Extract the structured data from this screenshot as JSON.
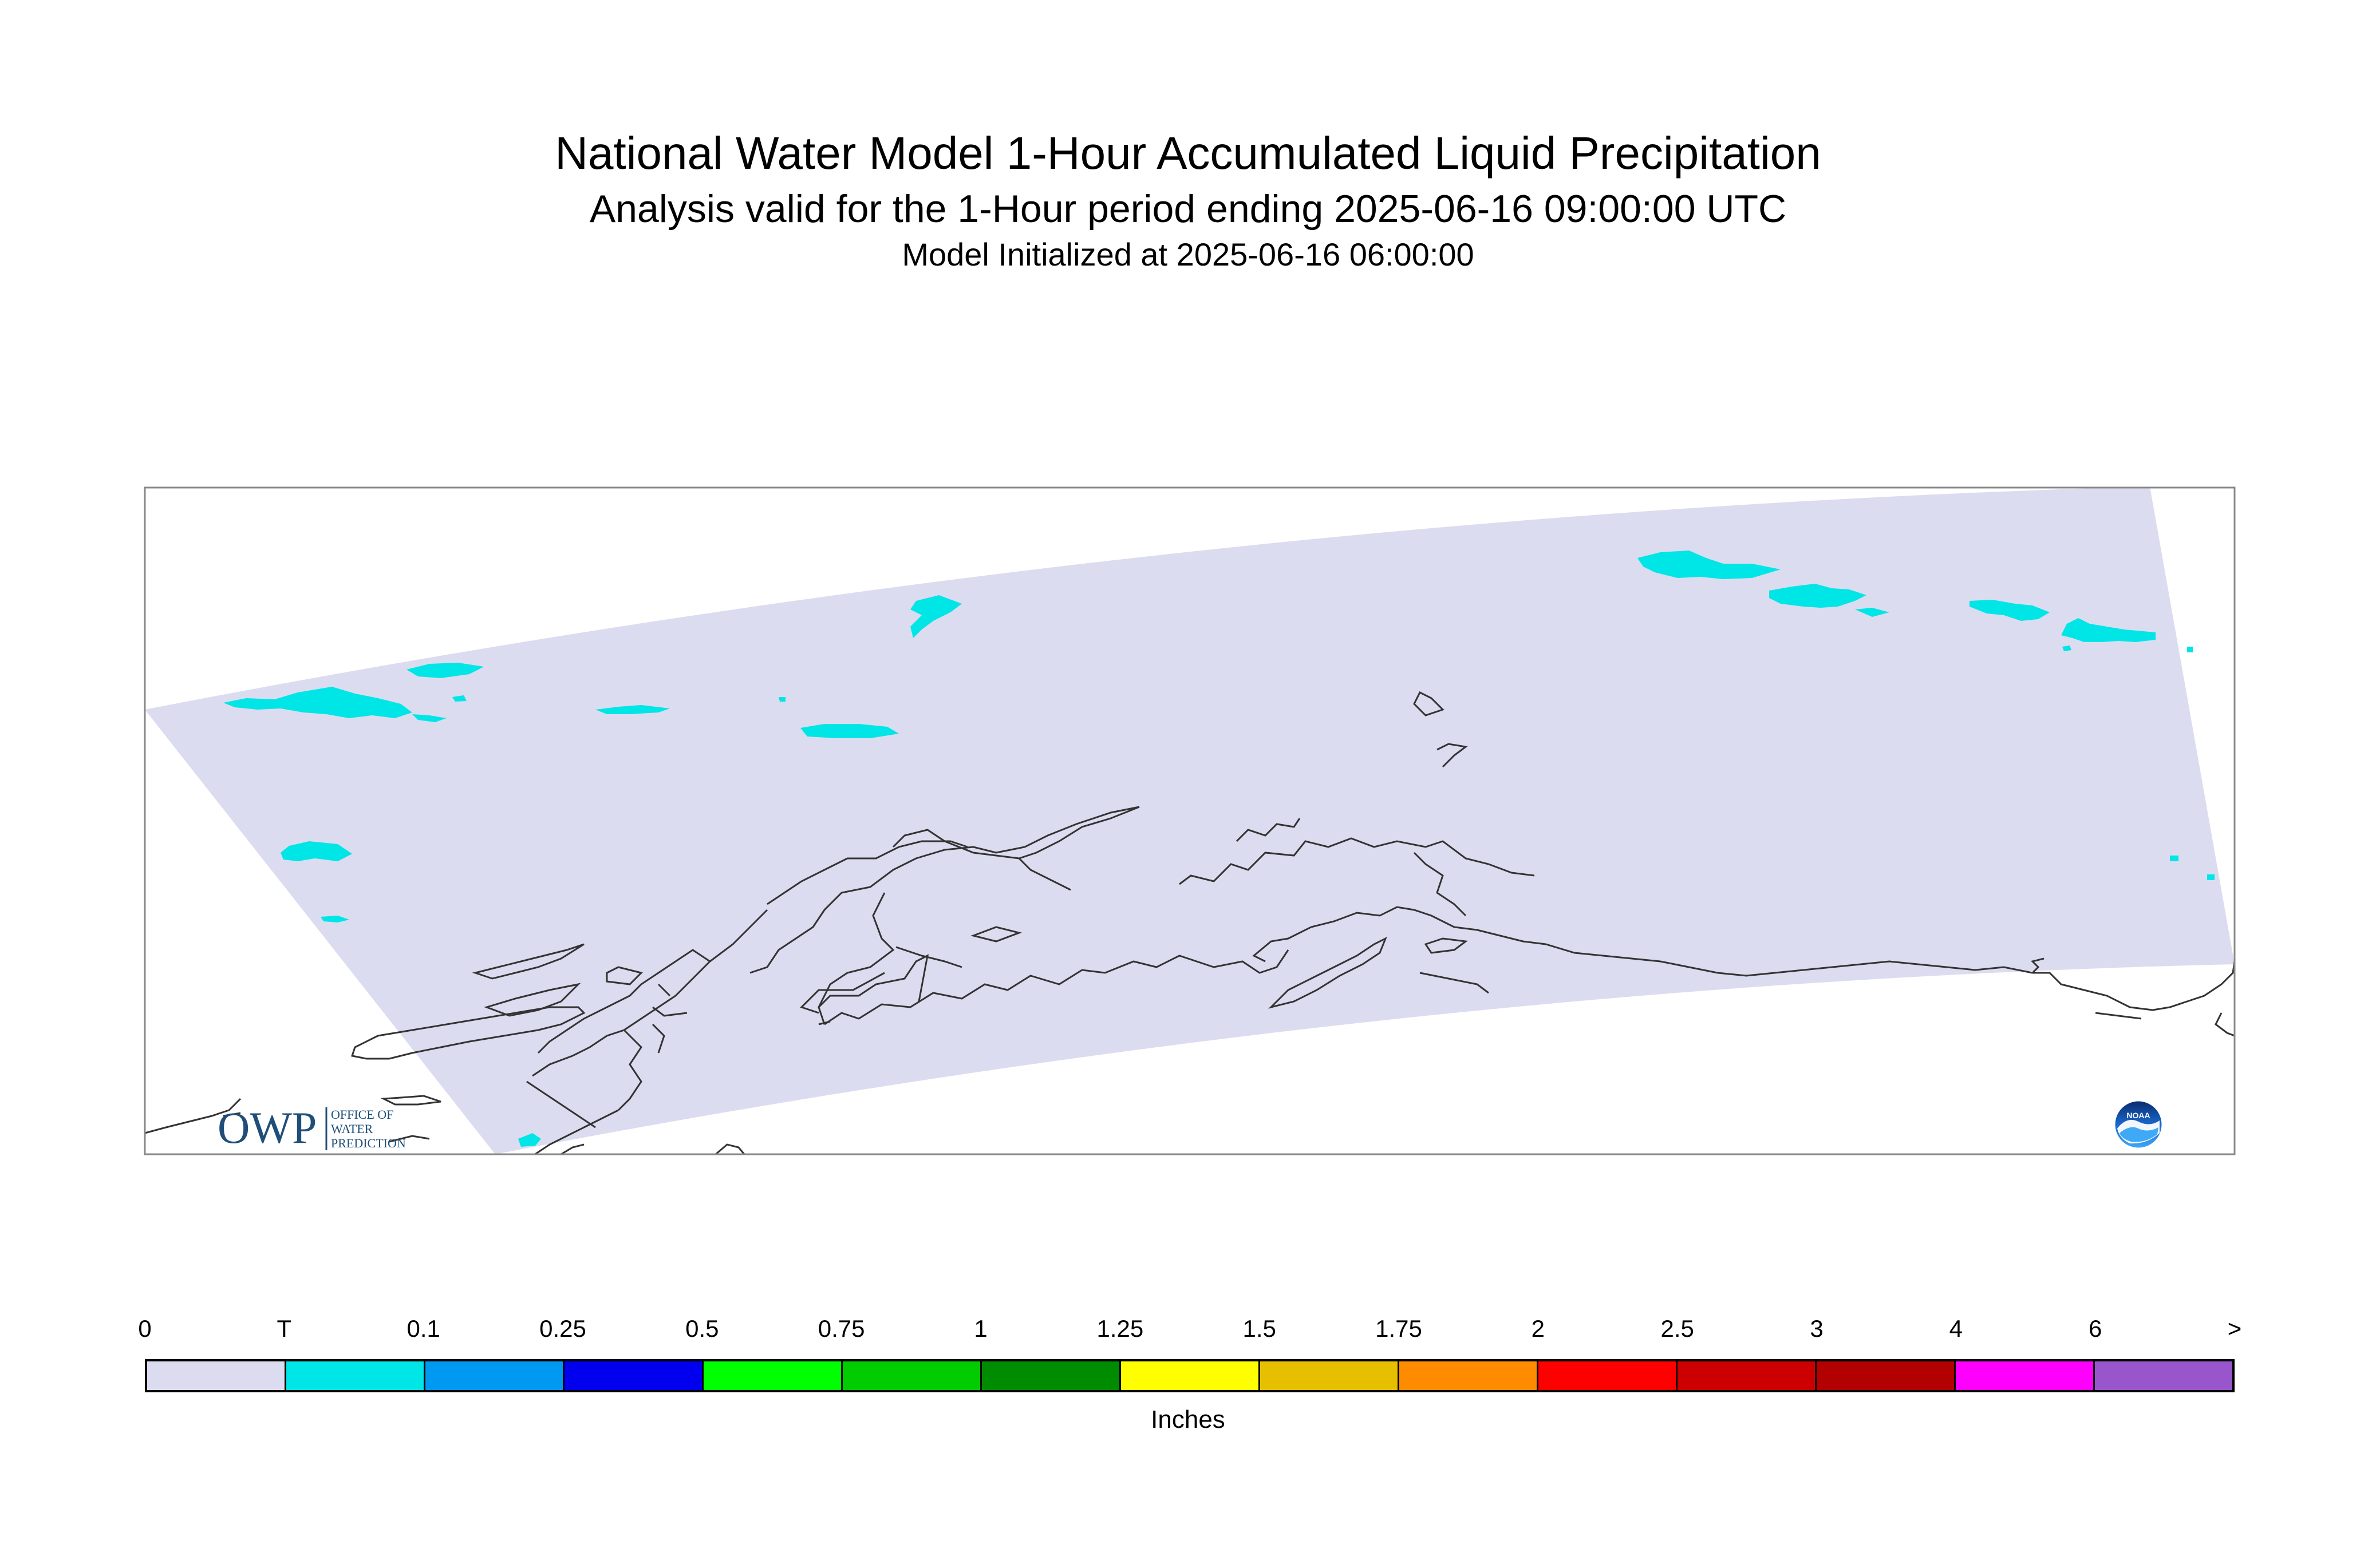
{
  "title": {
    "main": "National Water Model 1-Hour Accumulated Liquid Precipitation",
    "sub": "Analysis valid for the 1-Hour period ending 2025-06-16 09:00:00 UTC",
    "init": "Model Initialized at 2025-06-16 06:00:00"
  },
  "map": {
    "region": "Alaska",
    "domain_fill_color": "#dcdcf0",
    "precip_color": "#00e5e5",
    "coastline_color": "#333333",
    "frame_color": "#888888"
  },
  "logos": {
    "owp": {
      "mark": "OWP",
      "text": [
        "OFFICE OF",
        "WATER",
        "PREDICTION"
      ]
    },
    "noaa": {
      "text": "NOAA",
      "icon": "noaa-logo-icon"
    }
  },
  "legend": {
    "units": "Inches",
    "labels": [
      "0",
      "T",
      "0.1",
      "0.25",
      "0.5",
      "0.75",
      "1",
      "1.25",
      "1.5",
      "1.75",
      "2",
      "2.5",
      "3",
      "4",
      "6",
      ">"
    ],
    "colors": [
      "#dcdcf0",
      "#00e5e5",
      "#0099f2",
      "#0000ee",
      "#00ff00",
      "#00cc00",
      "#008c00",
      "#ffff00",
      "#e6c000",
      "#ff8c00",
      "#ff0000",
      "#cc0000",
      "#b30000",
      "#ff00ff",
      "#9955cc"
    ]
  }
}
